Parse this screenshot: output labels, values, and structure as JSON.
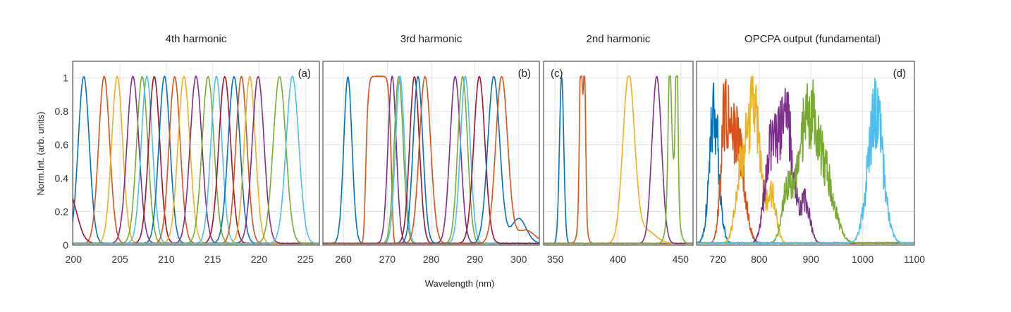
{
  "chart_data": {
    "type": "line",
    "ylabel": "Norm.Int. (arb. units)",
    "xlabel": "Wavelength (nm)",
    "ylim": [
      0,
      1.1
    ],
    "yticks": [
      "0",
      "0.2",
      "0.4",
      "0.6",
      "0.8",
      "1"
    ],
    "ytick_values": [
      0,
      0.2,
      0.4,
      0.6,
      0.8,
      1
    ],
    "grid": true,
    "colors": [
      "#0072BD",
      "#D95319",
      "#EDB120",
      "#7E2F8E",
      "#77AC30",
      "#4DBEEE",
      "#A2142F"
    ],
    "panels": [
      {
        "title": "4th harmonic",
        "label": "(a)",
        "label_position": "top-right",
        "xlim": [
          199.9,
          226.5
        ],
        "xticks": [
          200,
          205,
          210,
          215,
          220,
          225
        ],
        "xtick_labels": [
          "200",
          "205",
          "210",
          "215",
          "220",
          "225"
        ],
        "noisy": false,
        "series": [
          {
            "color": "#0072BD",
            "peaks": [
              {
                "center": 201.1,
                "fwhm": 1.4,
                "amp": 1
              }
            ]
          },
          {
            "color": "#D95319",
            "peaks": [
              {
                "center": 203.3,
                "fwhm": 1.4,
                "amp": 1
              }
            ]
          },
          {
            "color": "#EDB120",
            "peaks": [
              {
                "center": 204.7,
                "fwhm": 1.4,
                "amp": 1
              }
            ]
          },
          {
            "color": "#7E2F8E",
            "peaks": [
              {
                "center": 206.4,
                "fwhm": 1.5,
                "amp": 1
              }
            ]
          },
          {
            "color": "#77AC30",
            "peaks": [
              {
                "center": 207.4,
                "fwhm": 1.4,
                "amp": 1
              }
            ]
          },
          {
            "color": "#4DBEEE",
            "peaks": [
              {
                "center": 207.9,
                "fwhm": 1.4,
                "amp": 1
              }
            ]
          },
          {
            "color": "#A2142F",
            "peaks": [
              {
                "center": 208.7,
                "fwhm": 1.4,
                "amp": 1
              },
              {
                "center": 199.5,
                "fwhm": 2.0,
                "amp": 0.3
              }
            ]
          },
          {
            "color": "#0072BD",
            "peaks": [
              {
                "center": 209.8,
                "fwhm": 1.4,
                "amp": 1
              }
            ]
          },
          {
            "color": "#D95319",
            "peaks": [
              {
                "center": 210.9,
                "fwhm": 1.4,
                "amp": 1
              }
            ]
          },
          {
            "color": "#EDB120",
            "peaks": [
              {
                "center": 211.9,
                "fwhm": 1.5,
                "amp": 1
              }
            ]
          },
          {
            "color": "#7E2F8E",
            "peaks": [
              {
                "center": 213.2,
                "fwhm": 1.5,
                "amp": 1
              }
            ]
          },
          {
            "color": "#77AC30",
            "peaks": [
              {
                "center": 214.5,
                "fwhm": 1.5,
                "amp": 1
              }
            ]
          },
          {
            "color": "#4DBEEE",
            "peaks": [
              {
                "center": 215.4,
                "fwhm": 1.4,
                "amp": 1
              }
            ]
          },
          {
            "color": "#A2142F",
            "peaks": [
              {
                "center": 216.3,
                "fwhm": 1.5,
                "amp": 1
              }
            ]
          },
          {
            "color": "#0072BD",
            "peaks": [
              {
                "center": 217.3,
                "fwhm": 1.5,
                "amp": 1
              }
            ]
          },
          {
            "color": "#D95319",
            "peaks": [
              {
                "center": 218.1,
                "fwhm": 1.4,
                "amp": 1
              }
            ]
          },
          {
            "color": "#EDB120",
            "peaks": [
              {
                "center": 219.0,
                "fwhm": 1.4,
                "amp": 1
              }
            ]
          },
          {
            "color": "#7E2F8E",
            "peaks": [
              {
                "center": 219.9,
                "fwhm": 1.5,
                "amp": 1
              }
            ]
          },
          {
            "color": "#77AC30",
            "peaks": [
              {
                "center": 222.2,
                "fwhm": 1.6,
                "amp": 1
              }
            ]
          },
          {
            "color": "#4DBEEE",
            "peaks": [
              {
                "center": 223.6,
                "fwhm": 1.6,
                "amp": 1
              }
            ]
          }
        ]
      },
      {
        "title": "3rd harmonic",
        "label": "(b)",
        "label_position": "top-right",
        "xlim": [
          255.3,
          304.7
        ],
        "xticks": [
          260,
          270,
          280,
          290,
          300
        ],
        "xtick_labels": [
          "260",
          "270",
          "280",
          "290",
          "300"
        ],
        "noisy": false,
        "series": [
          {
            "color": "#0072BD",
            "peaks": [
              {
                "center": 261.0,
                "fwhm": 2.2,
                "amp": 1
              }
            ]
          },
          {
            "color": "#D95319",
            "peaks": [
              {
                "center": 268.0,
                "fwhm": 4.6,
                "amp": 1,
                "flat_top": true
              }
            ]
          },
          {
            "color": "#7E2F8E",
            "peaks": [
              {
                "center": 271.1,
                "fwhm": 2.2,
                "amp": 1
              }
            ]
          },
          {
            "color": "#77AC30",
            "peaks": [
              {
                "center": 272.6,
                "fwhm": 2.4,
                "amp": 1
              }
            ]
          },
          {
            "color": "#4DBEEE",
            "peaks": [
              {
                "center": 272.9,
                "fwhm": 2.4,
                "amp": 1
              }
            ]
          },
          {
            "color": "#A2142F",
            "peaks": [
              {
                "center": 276.2,
                "fwhm": 2.6,
                "amp": 1
              }
            ]
          },
          {
            "color": "#0072BD",
            "peaks": [
              {
                "center": 277.0,
                "fwhm": 2.6,
                "amp": 1
              }
            ]
          },
          {
            "color": "#D95319",
            "peaks": [
              {
                "center": 278.6,
                "fwhm": 3.0,
                "amp": 1
              }
            ]
          },
          {
            "color": "#7E2F8E",
            "peaks": [
              {
                "center": 285.5,
                "fwhm": 2.8,
                "amp": 1
              }
            ]
          },
          {
            "color": "#77AC30",
            "peaks": [
              {
                "center": 287.2,
                "fwhm": 2.6,
                "amp": 1
              }
            ]
          },
          {
            "color": "#4DBEEE",
            "peaks": [
              {
                "center": 287.8,
                "fwhm": 2.6,
                "amp": 1
              }
            ]
          },
          {
            "color": "#A2142F",
            "peaks": [
              {
                "center": 291.0,
                "fwhm": 3.0,
                "amp": 1
              }
            ]
          },
          {
            "color": "#0072BD",
            "peaks": [
              {
                "center": 294.3,
                "fwhm": 3.2,
                "amp": 1
              },
              {
                "center": 300.0,
                "fwhm": 4.0,
                "amp": 0.15
              }
            ]
          },
          {
            "color": "#D95319",
            "peaks": [
              {
                "center": 296.1,
                "fwhm": 3.2,
                "amp": 1
              },
              {
                "center": 301.5,
                "fwhm": 5.0,
                "amp": 0.08
              }
            ]
          }
        ]
      },
      {
        "title": "2nd harmonic",
        "label": "(c)",
        "label_position": "top-left",
        "xlim": [
          340.6,
          460
        ],
        "xticks": [
          350,
          400,
          450
        ],
        "xtick_labels": [
          "350",
          "400",
          "450"
        ],
        "noisy": false,
        "series": [
          {
            "color": "#0072BD",
            "peaks": [
              {
                "center": 355.0,
                "fwhm": 4.0,
                "amp": 1
              }
            ]
          },
          {
            "color": "#D95319",
            "peaks": [
              {
                "center": 370.4,
                "fwhm": 2.5,
                "amp": 1
              },
              {
                "center": 373.3,
                "fwhm": 2.2,
                "amp": 0.85
              },
              {
                "center": 371.5,
                "fwhm": 6.0,
                "amp": 0.25
              }
            ]
          },
          {
            "color": "#EDB120",
            "peaks": [
              {
                "center": 408.6,
                "fwhm": 11.0,
                "amp": 1
              },
              {
                "center": 422.0,
                "fwhm": 18.0,
                "amp": 0.08
              }
            ]
          },
          {
            "color": "#7E2F8E",
            "peaks": [
              {
                "center": 431.0,
                "fwhm": 9.0,
                "amp": 1
              }
            ]
          },
          {
            "color": "#77AC30",
            "peaks": [
              {
                "center": 447.0,
                "fwhm": 2.2,
                "amp": 1
              },
              {
                "center": 441.3,
                "fwhm": 3.0,
                "amp": 0.75
              },
              {
                "center": 444.0,
                "fwhm": 8.0,
                "amp": 0.45
              }
            ]
          }
        ]
      },
      {
        "title": "OPCPA output (fundamental)",
        "label": "(d)",
        "label_position": "top-right",
        "xlim": [
          679,
          1100
        ],
        "xticks": [
          720,
          800,
          900,
          1000,
          1100
        ],
        "xtick_labels": [
          "720",
          "800",
          "900",
          "1000",
          "1100"
        ],
        "noisy": true,
        "series": [
          {
            "color": "#0072BD",
            "peaks": [
              {
                "center": 713,
                "fwhm": 22,
                "amp": 1
              }
            ]
          },
          {
            "color": "#D95319",
            "peaks": [
              {
                "center": 735,
                "fwhm": 20,
                "amp": 1
              },
              {
                "center": 758,
                "fwhm": 30,
                "amp": 0.8
              }
            ]
          },
          {
            "color": "#EDB120",
            "peaks": [
              {
                "center": 790,
                "fwhm": 30,
                "amp": 1
              },
              {
                "center": 765,
                "fwhm": 25,
                "amp": 0.5
              },
              {
                "center": 825,
                "fwhm": 20,
                "amp": 0.35
              }
            ]
          },
          {
            "color": "#7E2F8E",
            "peaks": [
              {
                "center": 850,
                "fwhm": 35,
                "amp": 1
              },
              {
                "center": 820,
                "fwhm": 25,
                "amp": 0.6
              },
              {
                "center": 890,
                "fwhm": 20,
                "amp": 0.3
              }
            ]
          },
          {
            "color": "#77AC30",
            "peaks": [
              {
                "center": 895,
                "fwhm": 40,
                "amp": 1
              },
              {
                "center": 855,
                "fwhm": 25,
                "amp": 0.4
              },
              {
                "center": 930,
                "fwhm": 40,
                "amp": 0.45
              }
            ]
          },
          {
            "color": "#4DBEEE",
            "peaks": [
              {
                "center": 1025,
                "fwhm": 35,
                "amp": 1
              }
            ]
          }
        ]
      }
    ]
  }
}
